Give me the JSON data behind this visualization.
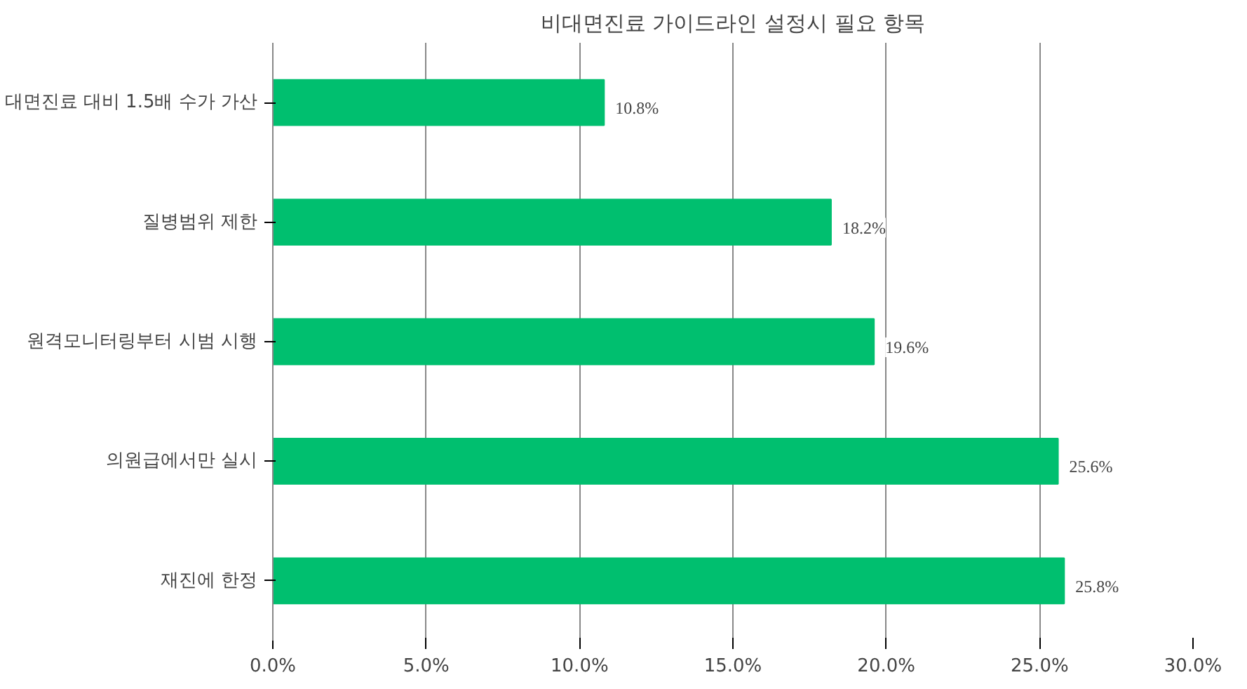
{
  "chart_data": {
    "type": "bar",
    "orientation": "horizontal",
    "title": "비대면진료 가이드라인 설정시 필요 항목",
    "categories": [
      "대면진료 대비 1.5배 수가 가산",
      "질병범위 제한",
      "원격모니터링부터 시범 시행",
      "의원급에서만 실시",
      "재진에 한정"
    ],
    "values": [
      10.8,
      18.2,
      19.6,
      25.6,
      25.8
    ],
    "value_labels": [
      "10.8%",
      "18.2%",
      "19.6%",
      "25.6%",
      "25.8%"
    ],
    "color": "#00bf6f",
    "xlim": [
      0,
      30
    ],
    "xticks": [
      {
        "value": 0,
        "label": "0.0%"
      },
      {
        "value": 5,
        "label": "5.0%"
      },
      {
        "value": 10,
        "label": "10.0%"
      },
      {
        "value": 15,
        "label": "15.0%"
      },
      {
        "value": 20,
        "label": "20.0%"
      },
      {
        "value": 25,
        "label": "25.0%"
      },
      {
        "value": 30,
        "label": "30.0%"
      }
    ],
    "grid": "x"
  }
}
